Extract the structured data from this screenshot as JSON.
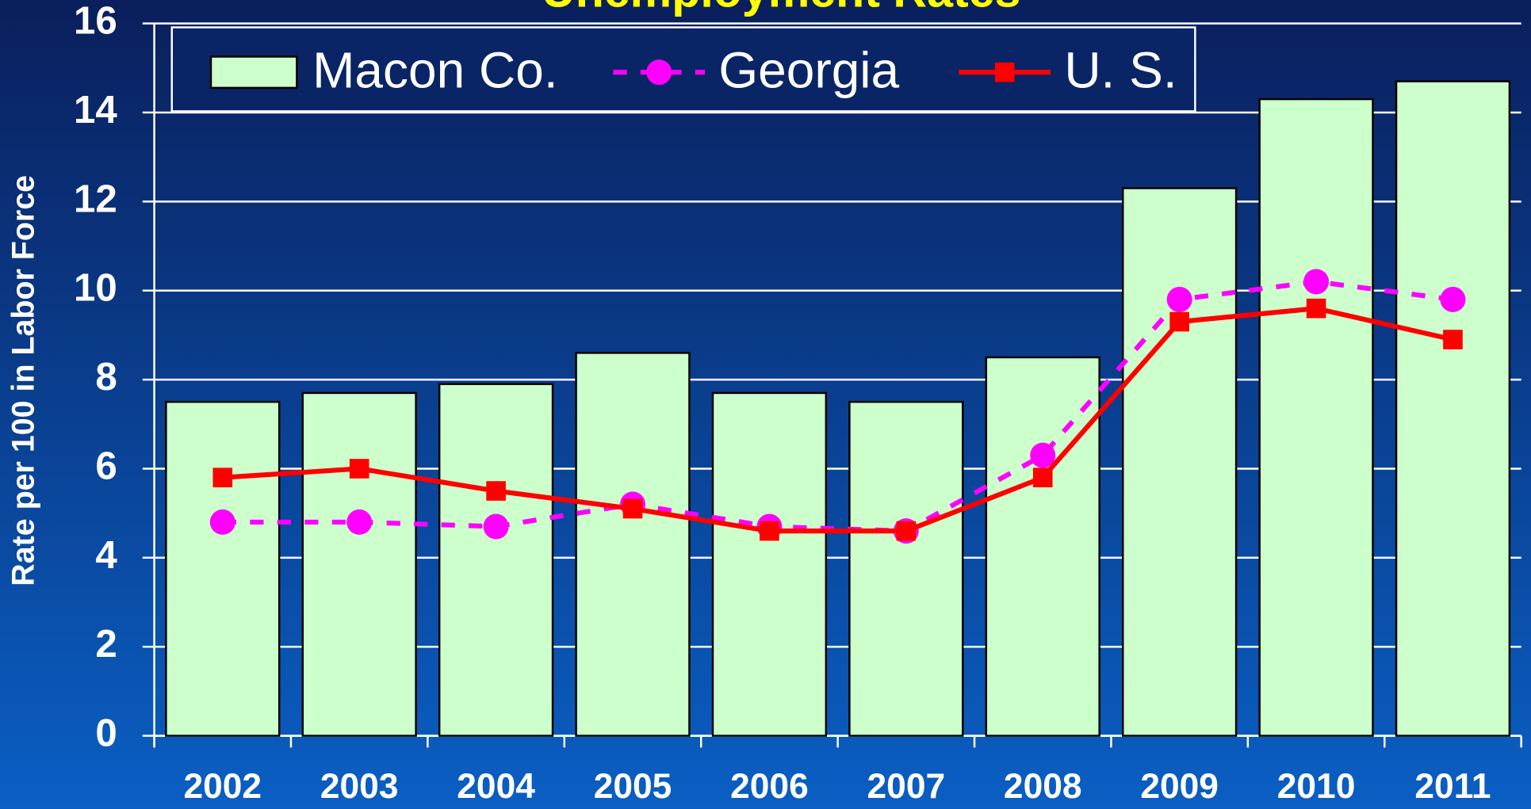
{
  "chart_data": {
    "type": "bar_line",
    "title": "Unemployment Rates",
    "y_label": "Rate per 100 in Labor Force",
    "categories": [
      "2002",
      "2003",
      "2004",
      "2005",
      "2006",
      "2007",
      "2008",
      "2009",
      "2010",
      "2011"
    ],
    "series": [
      {
        "name": "Macon Co.",
        "type": "bar",
        "color": "#ccffcc",
        "values": [
          7.5,
          7.7,
          7.9,
          8.6,
          7.7,
          7.5,
          8.5,
          12.3,
          14.3,
          14.7
        ]
      },
      {
        "name": "Georgia",
        "type": "line",
        "style": "dashed",
        "marker": "circle",
        "color": "#ff00ff",
        "values": [
          4.8,
          4.8,
          4.7,
          5.2,
          4.7,
          4.6,
          6.3,
          9.8,
          10.2,
          9.8
        ]
      },
      {
        "name": "U. S.",
        "type": "line",
        "style": "solid",
        "marker": "square",
        "color": "#ff0000",
        "values": [
          5.8,
          6.0,
          5.5,
          5.1,
          4.6,
          4.6,
          5.8,
          9.3,
          9.6,
          8.9
        ]
      }
    ],
    "ylim": [
      0,
      16
    ],
    "yticks": [
      0,
      2,
      4,
      6,
      8,
      10,
      12,
      14,
      16
    ],
    "grid": true,
    "legend": "top"
  }
}
